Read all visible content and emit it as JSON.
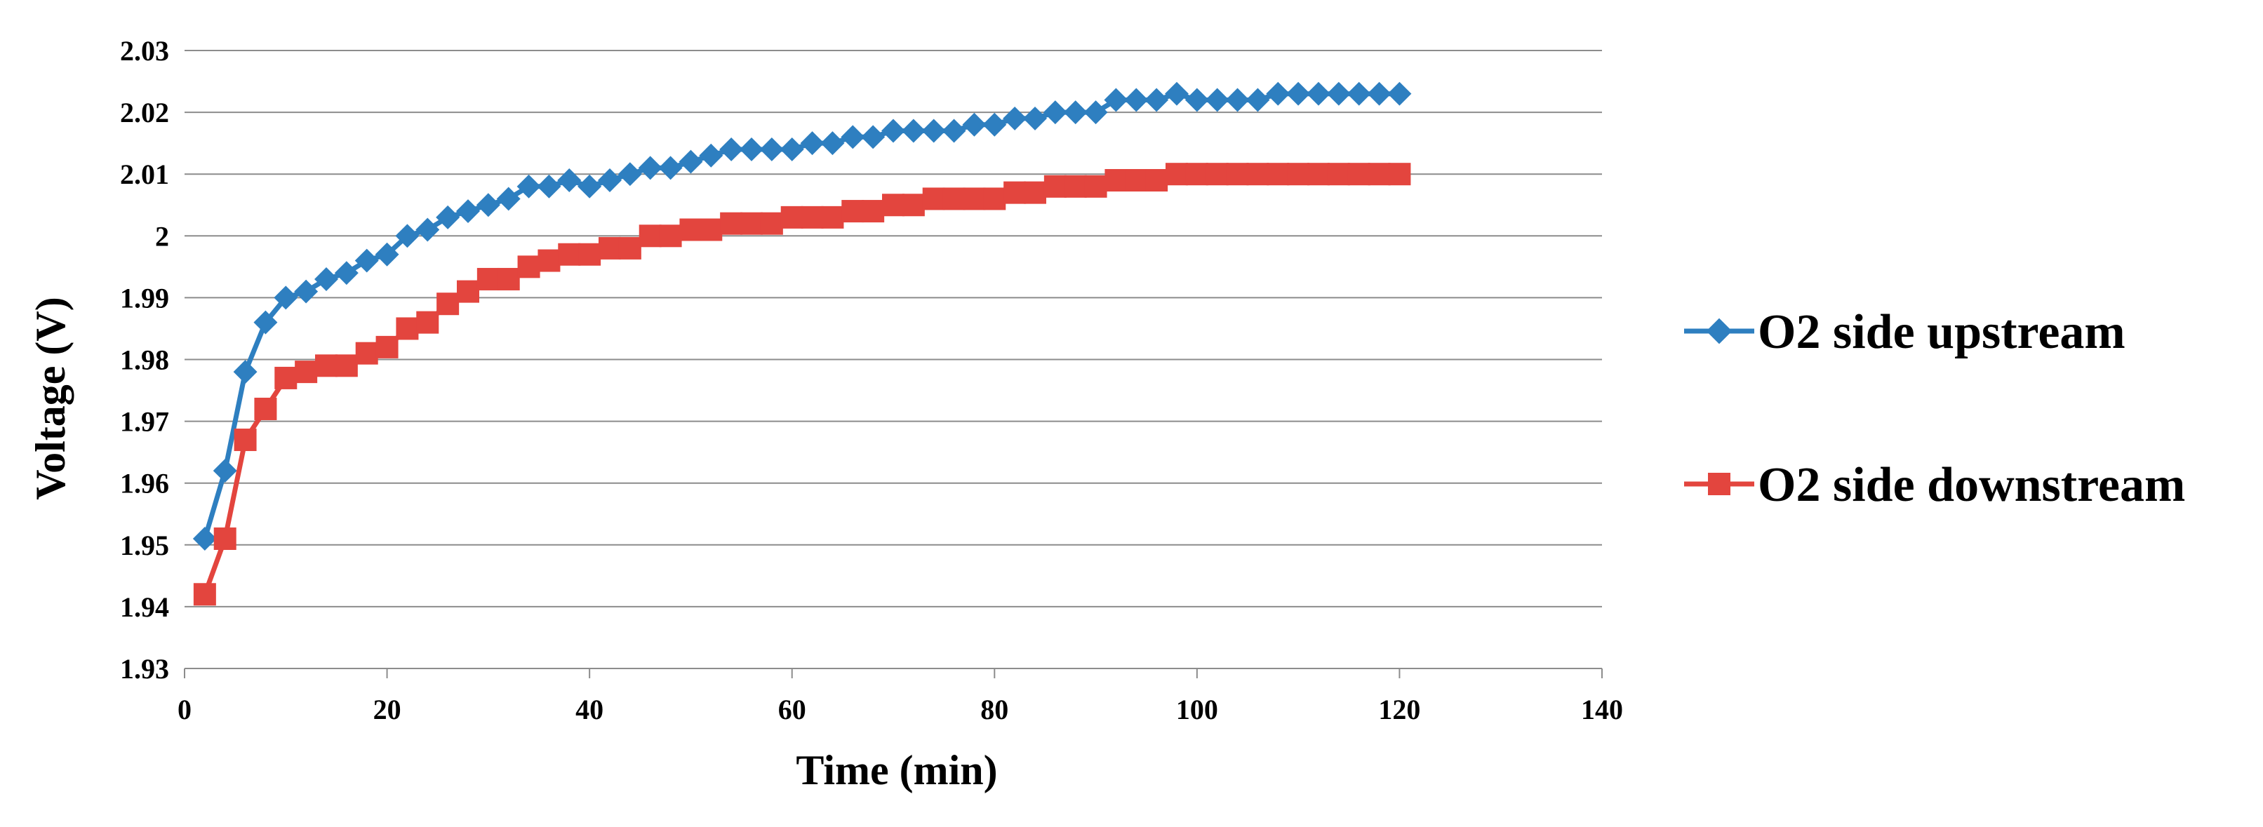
{
  "chart_data": {
    "type": "line",
    "title": "",
    "xlabel": "Time (min)",
    "ylabel": "Voltage (V)",
    "xlim": [
      0,
      140
    ],
    "ylim": [
      1.93,
      2.03
    ],
    "xticks": [
      0,
      20,
      40,
      60,
      80,
      100,
      120,
      140
    ],
    "xtick_labels": [
      "0",
      "20",
      "40",
      "60",
      "80",
      "100",
      "120",
      "140"
    ],
    "yticks": [
      1.93,
      1.94,
      1.95,
      1.96,
      1.97,
      1.98,
      1.99,
      2.0,
      2.01,
      2.02,
      2.03
    ],
    "ytick_labels": [
      "1.93",
      "1.94",
      "1.95",
      "1.96",
      "1.97",
      "1.98",
      "1.99",
      "2",
      "2.01",
      "2.02",
      "2.03"
    ],
    "grid": "horizontal",
    "legend_position": "right",
    "x": [
      2,
      4,
      6,
      8,
      10,
      12,
      14,
      16,
      18,
      20,
      22,
      24,
      26,
      28,
      30,
      32,
      34,
      36,
      38,
      40,
      42,
      44,
      46,
      48,
      50,
      52,
      54,
      56,
      58,
      60,
      62,
      64,
      66,
      68,
      70,
      72,
      74,
      76,
      78,
      80,
      82,
      84,
      86,
      88,
      90,
      92,
      94,
      96,
      98,
      100,
      102,
      104,
      106,
      108,
      110,
      112,
      114,
      116,
      118,
      120
    ],
    "series": [
      {
        "name": "O2 side upstream",
        "color": "#2E7FC0",
        "marker": "diamond",
        "values": [
          1.951,
          1.962,
          1.978,
          1.986,
          1.99,
          1.991,
          1.993,
          1.994,
          1.996,
          1.997,
          2.0,
          2.001,
          2.003,
          2.004,
          2.005,
          2.006,
          2.008,
          2.008,
          2.009,
          2.008,
          2.009,
          2.01,
          2.011,
          2.011,
          2.012,
          2.013,
          2.014,
          2.014,
          2.014,
          2.014,
          2.015,
          2.015,
          2.016,
          2.016,
          2.017,
          2.017,
          2.017,
          2.017,
          2.018,
          2.018,
          2.019,
          2.019,
          2.02,
          2.02,
          2.02,
          2.022,
          2.022,
          2.022,
          2.023,
          2.022,
          2.022,
          2.022,
          2.022,
          2.023,
          2.023,
          2.023,
          2.023,
          2.023,
          2.023,
          2.023
        ]
      },
      {
        "name": "O2 side downstream",
        "color": "#E3453E",
        "marker": "square",
        "values": [
          1.942,
          1.951,
          1.967,
          1.972,
          1.977,
          1.978,
          1.979,
          1.979,
          1.981,
          1.982,
          1.985,
          1.986,
          1.989,
          1.991,
          1.993,
          1.993,
          1.995,
          1.996,
          1.997,
          1.997,
          1.998,
          1.998,
          2.0,
          2.0,
          2.001,
          2.001,
          2.002,
          2.002,
          2.002,
          2.003,
          2.003,
          2.003,
          2.004,
          2.004,
          2.005,
          2.005,
          2.006,
          2.006,
          2.006,
          2.006,
          2.007,
          2.007,
          2.008,
          2.008,
          2.008,
          2.009,
          2.009,
          2.009,
          2.01,
          2.01,
          2.01,
          2.01,
          2.01,
          2.01,
          2.01,
          2.01,
          2.01,
          2.01,
          2.01,
          2.01
        ]
      }
    ]
  }
}
